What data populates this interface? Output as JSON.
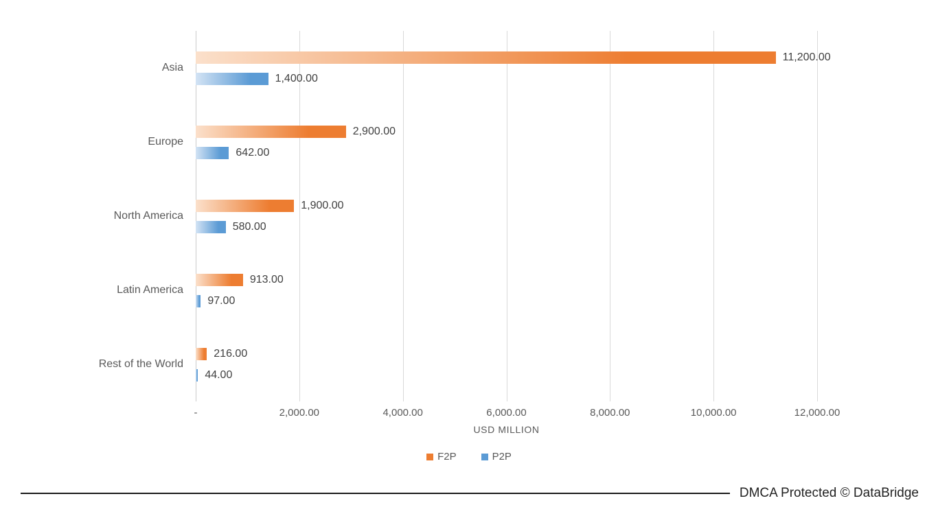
{
  "chart_data": {
    "type": "bar",
    "orientation": "horizontal",
    "categories": [
      "Asia",
      "Europe",
      "North America",
      "Latin America",
      "Rest of the World"
    ],
    "series": [
      {
        "name": "F2P",
        "color": "#ED7D31",
        "gradient_start": "#FBE0CB",
        "values": [
          11200,
          2900,
          1900,
          913,
          216
        ],
        "value_labels": [
          "11,200.00",
          "2,900.00",
          "1,900.00",
          "913.00",
          "216.00"
        ]
      },
      {
        "name": "P2P",
        "color": "#5B9BD5",
        "gradient_start": "#D3E3F4",
        "values": [
          1400,
          642,
          580,
          97,
          44
        ],
        "value_labels": [
          "1,400.00",
          "642.00",
          "580.00",
          "97.00",
          "44.00"
        ]
      }
    ],
    "xlabel": "USD MILLION",
    "xlim": [
      0,
      12000
    ],
    "x_ticks": [
      "-",
      "2,000.00",
      "4,000.00",
      "6,000.00",
      "8,000.00",
      "10,000.00",
      "12,000.00"
    ],
    "grid": true,
    "legend_position": "bottom"
  },
  "footer": {
    "dmca": "DMCA Protected © DataBridge"
  }
}
